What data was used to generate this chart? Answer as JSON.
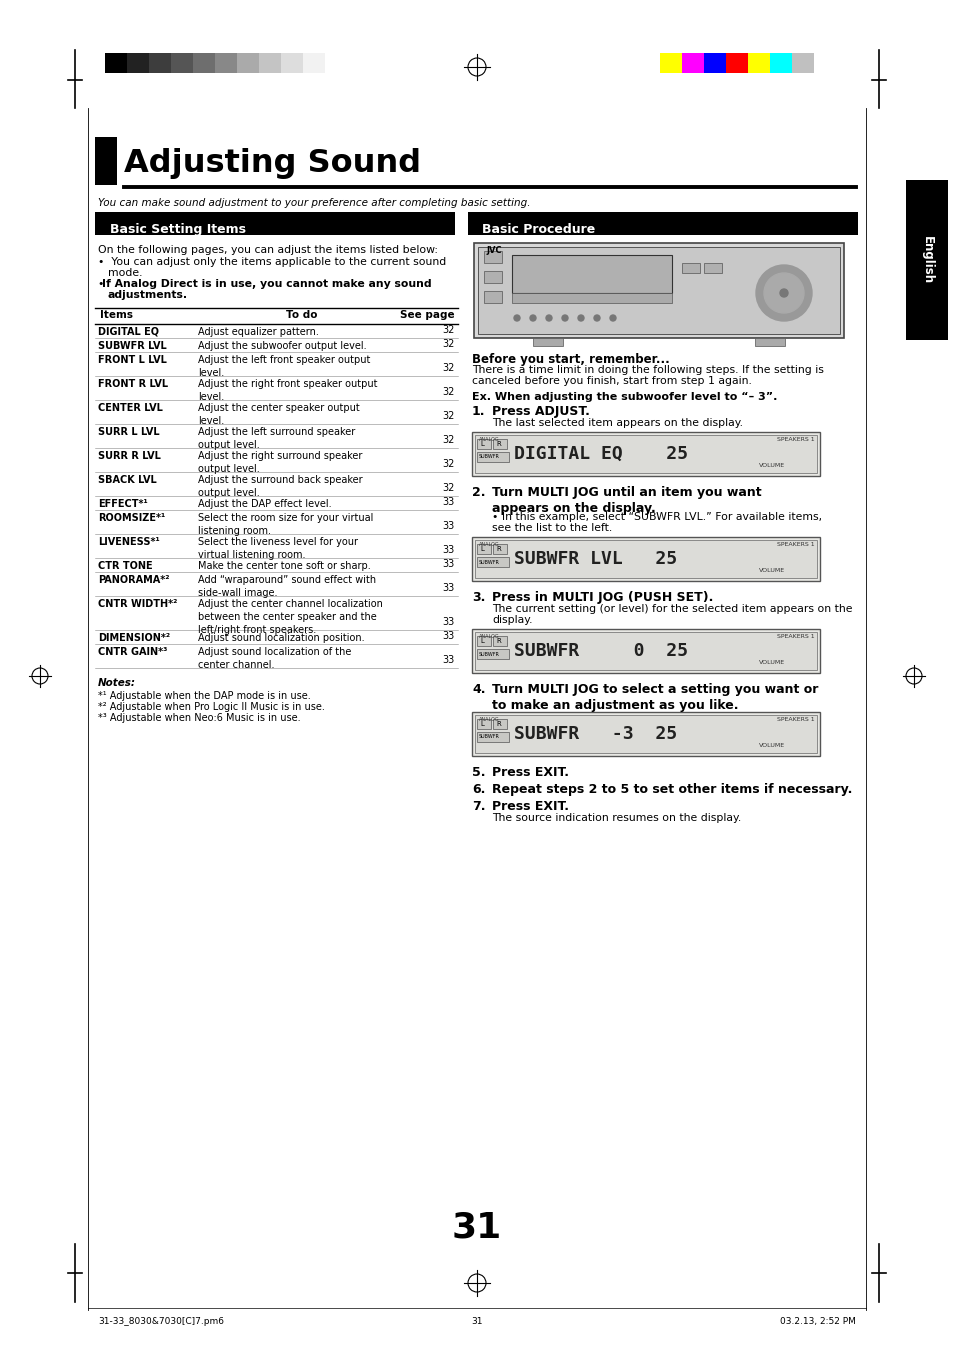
{
  "page_bg": "#ffffff",
  "title": "Adjusting Sound",
  "subtitle": "You can make sound adjustment to your preference after completing basic setting.",
  "section_left": "Basic Setting Items",
  "section_right": "Basic Procedure",
  "table_headers": [
    "Items",
    "To do",
    "See page"
  ],
  "table_rows": [
    [
      "DIGITAL EQ",
      "Adjust equalizer pattern.",
      "32"
    ],
    [
      "SUBWFR LVL",
      "Adjust the subwoofer output level.",
      "32"
    ],
    [
      "FRONT L LVL",
      "Adjust the left front speaker output\nlevel.",
      "32"
    ],
    [
      "FRONT R LVL",
      "Adjust the right front speaker output\nlevel.",
      "32"
    ],
    [
      "CENTER LVL",
      "Adjust the center speaker output\nlevel.",
      "32"
    ],
    [
      "SURR L LVL",
      "Adjust the left surround speaker\noutput level.",
      "32"
    ],
    [
      "SURR R LVL",
      "Adjust the right surround speaker\noutput level.",
      "32"
    ],
    [
      "SBACK LVL",
      "Adjust the surround back speaker\noutput level.",
      "32"
    ],
    [
      "EFFECT*¹",
      "Adjust the DAP effect level.",
      "33"
    ],
    [
      "ROOMSIZE*¹",
      "Select the room size for your virtual\nlistening room.",
      "33"
    ],
    [
      "LIVENESS*¹",
      "Select the liveness level for your\nvirtual listening room.",
      "33"
    ],
    [
      "CTR TONE",
      "Make the center tone soft or sharp.",
      "33"
    ],
    [
      "PANORAMA*²",
      "Add “wraparound” sound effect with\nside-wall image.",
      "33"
    ],
    [
      "CNTR WIDTH*²",
      "Adjust the center channel localization\nbetween the center speaker and the\nleft/right front speakers.",
      "33"
    ],
    [
      "DIMENSION*²",
      "Adjust sound localization position.",
      "33"
    ],
    [
      "CNTR GAIN*³",
      "Adjust sound localization of the\ncenter channel.",
      "33"
    ]
  ],
  "notes_header": "Notes:",
  "notes": [
    "*¹ Adjustable when the DAP mode is in use.",
    "*² Adjustable when Pro Logic II Music is in use.",
    "*³ Adjustable when Neo:6 Music is in use."
  ],
  "procedure_before": "Before you start, remember...",
  "procedure_before_text": "There is a time limit in doing the following steps. If the setting is\ncanceled before you finish, start from step 1 again.",
  "procedure_example": "Ex. When adjusting the subwoofer level to “– 3”.",
  "steps": [
    {
      "num": "1.",
      "bold": "Press ADJUST.",
      "text": "The last selected item appears on the display.",
      "screen": "DIGITAL EQ    25"
    },
    {
      "num": "2.",
      "bold": "Turn MULTI JOG until an item you want\nappears on the display.",
      "text": "• In this example, select “SUBWFR LVL.” For available items,\nsee the list to the left.",
      "screen": "SUBWFR LVL   25"
    },
    {
      "num": "3.",
      "bold": "Press in MULTI JOG (PUSH SET).",
      "text": "The current setting (or level) for the selected item appears on the\ndisplay.",
      "screen": "SUBWFR       0  25"
    },
    {
      "num": "4.",
      "bold": "Turn MULTI JOG to select a setting you want or\nto make an adjustment as you like.",
      "screen": "SUBWFR    -3  25"
    },
    {
      "num": "5.",
      "bold": "Press EXIT."
    },
    {
      "num": "6.",
      "bold": "Repeat steps 2 to 5 to set other items if necessary."
    },
    {
      "num": "7.",
      "bold": "Press EXIT.",
      "text": "The source indication resumes on the display."
    }
  ],
  "page_number": "31",
  "footer_left": "31-33_8030&7030[C]7.pm6",
  "footer_center": "31",
  "footer_right": "03.2.13, 2:52 PM",
  "grayscale_colors": [
    "#000000",
    "#222222",
    "#3d3d3d",
    "#555555",
    "#6e6e6e",
    "#888888",
    "#aaaaaa",
    "#c4c4c4",
    "#dddddd",
    "#f2f2f2"
  ],
  "color_bars": [
    "#ffff00",
    "#ff00ff",
    "#0000ff",
    "#ff0000",
    "#ffff00",
    "#00ffff",
    "#c0c0c0"
  ]
}
